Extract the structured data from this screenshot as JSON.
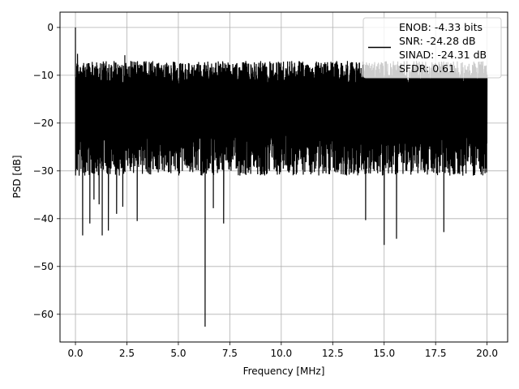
{
  "chart_data": {
    "type": "line",
    "xlabel": "Frequency [MHz]",
    "ylabel": "PSD [dB]",
    "xlim": [
      -0.75,
      21.0
    ],
    "ylim": [
      -65.8,
      3.2
    ],
    "xticks": [
      0.0,
      2.5,
      5.0,
      7.5,
      10.0,
      12.5,
      15.0,
      17.5,
      20.0
    ],
    "xtick_labels": [
      "0.0",
      "2.5",
      "5.0",
      "7.5",
      "10.0",
      "12.5",
      "15.0",
      "17.5",
      "20.0"
    ],
    "yticks": [
      0,
      -10,
      -20,
      -30,
      -40,
      -50,
      -60
    ],
    "ytick_labels": [
      "0",
      "−10",
      "−20",
      "−30",
      "−40",
      "−50",
      "−60"
    ],
    "grid": true,
    "legend_position": "upper right",
    "series": [
      {
        "name": "ENOB: -4.33 bits\nSNR: -24.28 dB\nSINAD: -24.31 dB\nSFDR: 0.61",
        "legend_lines": [
          "ENOB: -4.33 bits",
          "SNR: -24.28 dB",
          "SINAD: -24.31 dB",
          "SFDR: 0.61"
        ],
        "color": "#000000",
        "x_range": [
          0.0,
          20.0
        ],
        "envelope_max": -5.5,
        "envelope_min": -31.0,
        "points": [
          [
            0.0,
            0.0
          ],
          [
            0.04,
            -15.0
          ],
          [
            0.1,
            -5.5
          ],
          [
            0.18,
            -31.0
          ],
          [
            0.3,
            -25.0
          ],
          [
            0.35,
            -43.5
          ],
          [
            0.7,
            -41.0
          ],
          [
            0.9,
            -36.0
          ],
          [
            1.15,
            -37.0
          ],
          [
            1.3,
            -43.5
          ],
          [
            1.6,
            -42.5
          ],
          [
            2.0,
            -39.0
          ],
          [
            2.3,
            -37.5
          ],
          [
            3.0,
            -40.5
          ],
          [
            2.4,
            -5.8
          ],
          [
            6.3,
            -62.6
          ],
          [
            6.7,
            -37.8
          ],
          [
            7.2,
            -41.0
          ],
          [
            14.1,
            -40.3
          ],
          [
            15.0,
            -45.5
          ],
          [
            15.6,
            -44.2
          ],
          [
            17.9,
            -42.8
          ]
        ]
      }
    ]
  }
}
